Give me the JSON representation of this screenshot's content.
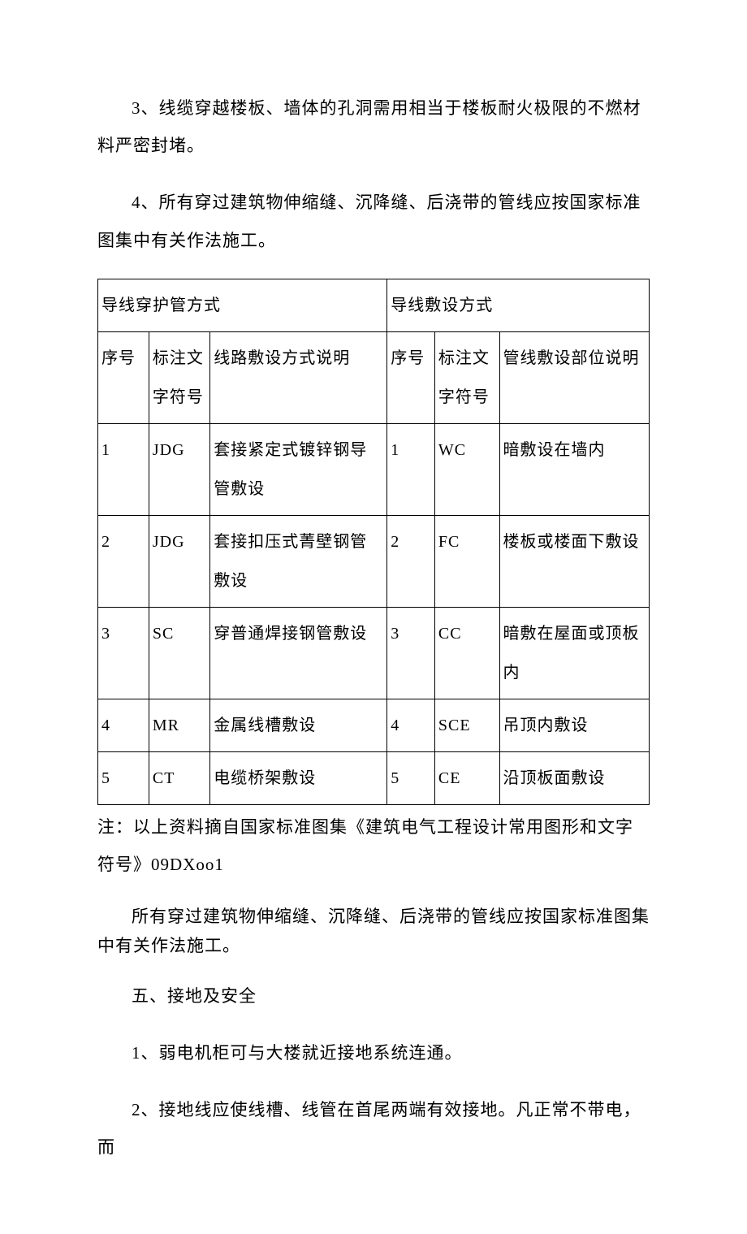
{
  "para1": "3、线缆穿越楼板、墙体的孔洞需用相当于楼板耐火极限的不燃材料严密封堵。",
  "para2": "4、所有穿过建筑物伸缩缝、沉降缝、后浇带的管线应按国家标准图集中有关作法施工。",
  "table": {
    "header_left": "导线穿护管方式",
    "header_right": "导线敷设方式",
    "sub_header": {
      "seq_l": "序号",
      "sym_l": "标注文字符号",
      "desc_l": "线路敷设方式说明",
      "seq_r": "序号",
      "sym_r": "标注文字符号",
      "desc_r": "管线敷设部位说明"
    },
    "rows": [
      {
        "seq_l": "1",
        "sym_l": "JDG",
        "desc_l": "套接紧定式镀锌钢导管敷设",
        "seq_r": "1",
        "sym_r": "WC",
        "desc_r": "暗敷设在墙内"
      },
      {
        "seq_l": "2",
        "sym_l": "JDG",
        "desc_l": "套接扣压式菁壁钢管敷设",
        "seq_r": "2",
        "sym_r": "FC",
        "desc_r": "楼板或楼面下敷设"
      },
      {
        "seq_l": "3",
        "sym_l": "SC",
        "desc_l": "穿普通焊接钢管敷设",
        "seq_r": "3",
        "sym_r": "CC",
        "desc_r": "暗敷在屋面或顶板内"
      },
      {
        "seq_l": "4",
        "sym_l": "MR",
        "desc_l": "金属线槽敷设",
        "seq_r": "4",
        "sym_r": "SCE",
        "desc_r": "吊顶内敷设"
      },
      {
        "seq_l": "5",
        "sym_l": "CT",
        "desc_l": "电缆桥架敷设",
        "seq_r": "5",
        "sym_r": "CE",
        "desc_r": "沿顶板面敷设"
      }
    ]
  },
  "note": "注：以上资料摘自国家标准图集《建筑电气工程设计常用图形和文字符号》09DXoo1",
  "para3": "所有穿过建筑物伸缩缝、沉降缝、后浇带的管线应按国家标准图集中有关作法施工。",
  "section_title": "五、接地及安全",
  "para4": "1、弱电机柜可与大楼就近接地系统连通。",
  "para5": "2、接地线应使线槽、线管在首尾两端有效接地。凡正常不带电，而"
}
